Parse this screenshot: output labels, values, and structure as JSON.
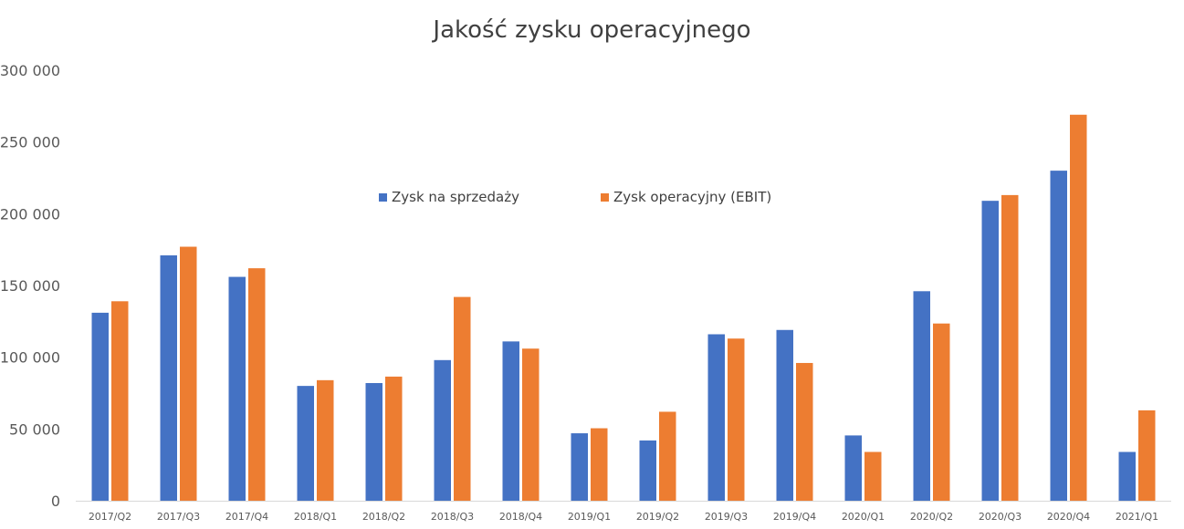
{
  "chart_data": {
    "type": "bar",
    "title": "Jakość zysku operacyjnego",
    "categories": [
      "2017/Q2",
      "2017/Q3",
      "2017/Q4",
      "2018/Q1",
      "2018/Q2",
      "2018/Q3",
      "2018/Q4",
      "2019/Q1",
      "2019/Q2",
      "2019/Q3",
      "2019/Q4",
      "2020/Q1",
      "2020/Q2",
      "2020/Q3",
      "2020/Q4",
      "2021/Q1"
    ],
    "series": [
      {
        "name": "Zysk na sprzedaży",
        "color": "#4472C4",
        "values": [
          131000,
          171000,
          156000,
          80000,
          82000,
          98000,
          111000,
          47000,
          42000,
          116000,
          119000,
          45500,
          146000,
          209000,
          230000,
          34000
        ]
      },
      {
        "name": "Zysk operacyjny (EBIT)",
        "color": "#ED7D31",
        "values": [
          139000,
          177000,
          162000,
          84000,
          86500,
          142000,
          106000,
          50500,
          62000,
          113000,
          96000,
          34000,
          123500,
          213000,
          269000,
          63000
        ]
      }
    ],
    "yticks": [
      "0",
      "50 000",
      "100 000",
      "150 000",
      "200 000",
      "250 000",
      "300 000"
    ],
    "ylim": [
      0,
      300000
    ],
    "xlabel": "",
    "ylabel": "",
    "grid": false,
    "legend_position": "inside-top"
  }
}
